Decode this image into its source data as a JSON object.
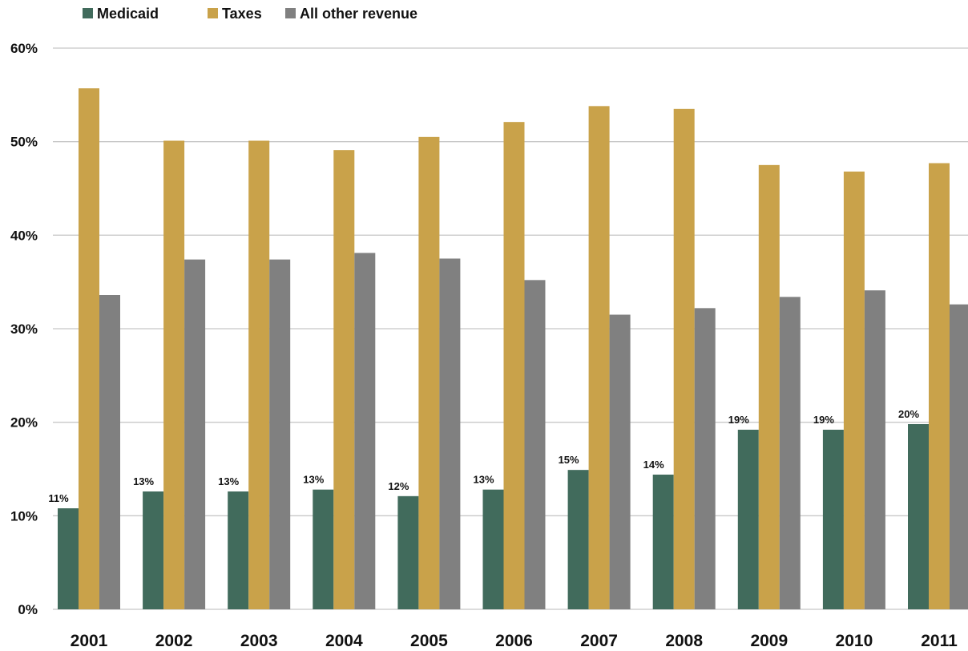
{
  "chart_data": {
    "type": "bar",
    "categories": [
      "2001",
      "2002",
      "2003",
      "2004",
      "2005",
      "2006",
      "2007",
      "2008",
      "2009",
      "2010",
      "2011"
    ],
    "series": [
      {
        "name": "Medicaid",
        "color": "#416b5c",
        "values": [
          10.8,
          12.6,
          12.6,
          12.8,
          12.1,
          12.8,
          14.9,
          14.4,
          19.2,
          19.2,
          19.8
        ],
        "labels": [
          "11%",
          "13%",
          "13%",
          "13%",
          "12%",
          "13%",
          "15%",
          "14%",
          "19%",
          "19%",
          "20%"
        ]
      },
      {
        "name": "Taxes",
        "color": "#c9a24a",
        "values": [
          55.7,
          50.1,
          50.1,
          49.1,
          50.5,
          52.1,
          53.8,
          53.5,
          47.5,
          46.8,
          47.7
        ]
      },
      {
        "name": "All other revenue",
        "color": "#808080",
        "values": [
          33.6,
          37.4,
          37.4,
          38.1,
          37.5,
          35.2,
          31.5,
          32.2,
          33.4,
          34.1,
          32.6
        ]
      }
    ],
    "yticks": [
      "0%",
      "10%",
      "20%",
      "30%",
      "40%",
      "50%",
      "60%"
    ],
    "ylim": [
      0,
      60
    ],
    "grid": true,
    "legend_position": "top-left"
  }
}
